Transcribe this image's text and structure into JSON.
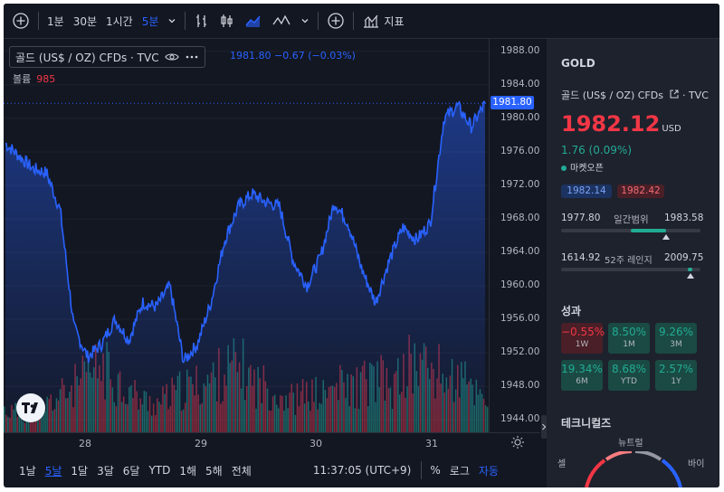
{
  "toolbar": {
    "intervals": [
      "1분",
      "30분",
      "1시간",
      "5분"
    ],
    "active_interval": "5분",
    "indicators_label": "지표"
  },
  "legend": {
    "symbol_name": "골드 (US$ / OZ) CFDs · TVC",
    "values": "1981.80 −0.67 (−0.03%)",
    "volume_label": "볼륨",
    "volume_value": "985"
  },
  "price_axis": {
    "ticks": [
      "1988.00",
      "1984.00",
      "1980.00",
      "1976.00",
      "1972.00",
      "1968.00",
      "1964.00",
      "1960.00",
      "1956.00",
      "1952.00",
      "1948.00",
      "1944.00"
    ],
    "current_price_tag": "1981.80"
  },
  "time_axis": {
    "ticks": [
      "28",
      "29",
      "30",
      "31"
    ]
  },
  "bottom_bar": {
    "ranges": [
      "1날",
      "5날",
      "1달",
      "3달",
      "6달",
      "YTD",
      "1해",
      "5해",
      "전체"
    ],
    "active_range": "5날",
    "clock": "11:37:05 (UTC+9)",
    "percent_label": "%",
    "log_label": "로그",
    "auto_label": "자동"
  },
  "details": {
    "symbol": "GOLD",
    "name": "골드 (US$ / OZ) CFDs",
    "exchange": "TVC",
    "price": "1982.12",
    "currency": "USD",
    "change": "1.76 (0.09%)",
    "market_status": "마켓오픈",
    "bid": "1982.14",
    "ask": "1982.42",
    "day_low": "1977.80",
    "day_range_label": "일간범위",
    "day_high": "1983.58",
    "day_position": 0.75,
    "week52_low": "1614.92",
    "week52_label": "52주 레인지",
    "week52_high": "2009.75",
    "week52_position": 0.93,
    "performance_title": "성과",
    "performance": [
      {
        "value": "−0.55%",
        "period": "1W",
        "dir": "neg"
      },
      {
        "value": "8.50%",
        "period": "1M",
        "dir": "pos"
      },
      {
        "value": "9.26%",
        "period": "3M",
        "dir": "pos"
      },
      {
        "value": "19.34%",
        "period": "6M",
        "dir": "pos"
      },
      {
        "value": "8.68%",
        "period": "YTD",
        "dir": "pos"
      },
      {
        "value": "2.57%",
        "period": "1Y",
        "dir": "pos"
      }
    ],
    "technicals_title": "테크니컬즈",
    "gauge_neutral": "뉴트럴",
    "gauge_sell": "셀",
    "gauge_buy": "바이"
  },
  "chart_data": {
    "type": "area",
    "ylim": [
      1942.5,
      1989.5
    ],
    "x": [
      "27",
      "27",
      "27",
      "27",
      "27",
      "28",
      "28",
      "28",
      "28",
      "28",
      "28",
      "28",
      "29",
      "29",
      "29",
      "29",
      "29",
      "29",
      "29",
      "29",
      "30",
      "30",
      "30",
      "30",
      "30",
      "30",
      "30",
      "30",
      "30",
      "31",
      "31",
      "31",
      "31",
      "31",
      "31",
      "31"
    ],
    "values": [
      1977.0,
      1975.5,
      1974.0,
      1973.5,
      1969.0,
      1955.0,
      1951.5,
      1953.0,
      1956.0,
      1953.5,
      1958.0,
      1957.5,
      1960.0,
      1951.0,
      1953.0,
      1958.0,
      1965.5,
      1969.5,
      1971.0,
      1970.0,
      1969.5,
      1963.0,
      1960.0,
      1963.5,
      1970.0,
      1967.5,
      1962.0,
      1958.0,
      1963.0,
      1967.0,
      1965.5,
      1967.5,
      1980.0,
      1981.5,
      1979.0,
      1981.8
    ],
    "volume": [
      30,
      26,
      22,
      36,
      48,
      60,
      72,
      88,
      72,
      55,
      42,
      38,
      48,
      58,
      62,
      70,
      82,
      88,
      66,
      60,
      50,
      44,
      52,
      48,
      62,
      58,
      66,
      72,
      56,
      86,
      92,
      82,
      72,
      68,
      56,
      48
    ]
  },
  "colors": {
    "line": "#2962ff",
    "vol_up": "#22ab94",
    "vol_down": "#f23645",
    "price_down": "#f23645",
    "price_up": "#22ab94"
  }
}
